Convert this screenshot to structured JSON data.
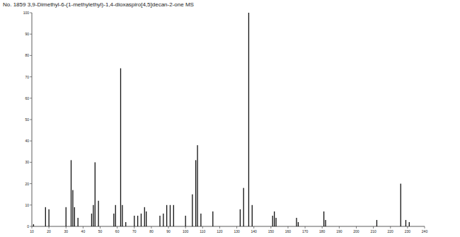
{
  "chart_data": {
    "type": "bar",
    "title": "No. 1859 3,9-Dimethyl-6-(1-methylethyl)-1,4-dioxaspiro[4,5]decan-2-one MS",
    "x": [
      11,
      18,
      20,
      30,
      33,
      34,
      35,
      37,
      45,
      46,
      47,
      49,
      58,
      59,
      62,
      63,
      65,
      70,
      72,
      74,
      76,
      77,
      85,
      87,
      89,
      91,
      93,
      100,
      104,
      106,
      107,
      109,
      116,
      132,
      134,
      137,
      139,
      151,
      152,
      153,
      165,
      166,
      181,
      182,
      212,
      226,
      229,
      231
    ],
    "values": [
      1,
      9,
      8,
      9,
      31,
      17,
      9,
      4,
      6,
      10,
      30,
      12,
      6,
      10,
      74,
      10,
      2,
      5,
      5,
      6,
      9,
      7,
      5,
      6,
      10,
      10,
      10,
      5,
      15,
      31,
      38,
      6,
      7,
      8,
      18,
      100,
      10,
      5,
      7,
      4,
      4,
      2,
      7,
      3,
      3,
      20,
      3,
      2
    ],
    "color": "#111111",
    "xlim": [
      10,
      240
    ],
    "xticks": [
      10,
      20,
      30,
      40,
      50,
      60,
      70,
      80,
      90,
      100,
      110,
      120,
      130,
      140,
      150,
      160,
      170,
      180,
      190,
      200,
      210,
      220,
      230,
      240
    ],
    "ylim": [
      0,
      100
    ],
    "yticks": [
      0,
      10,
      20,
      30,
      40,
      50,
      60,
      70,
      80,
      90,
      100
    ],
    "grid": false
  }
}
